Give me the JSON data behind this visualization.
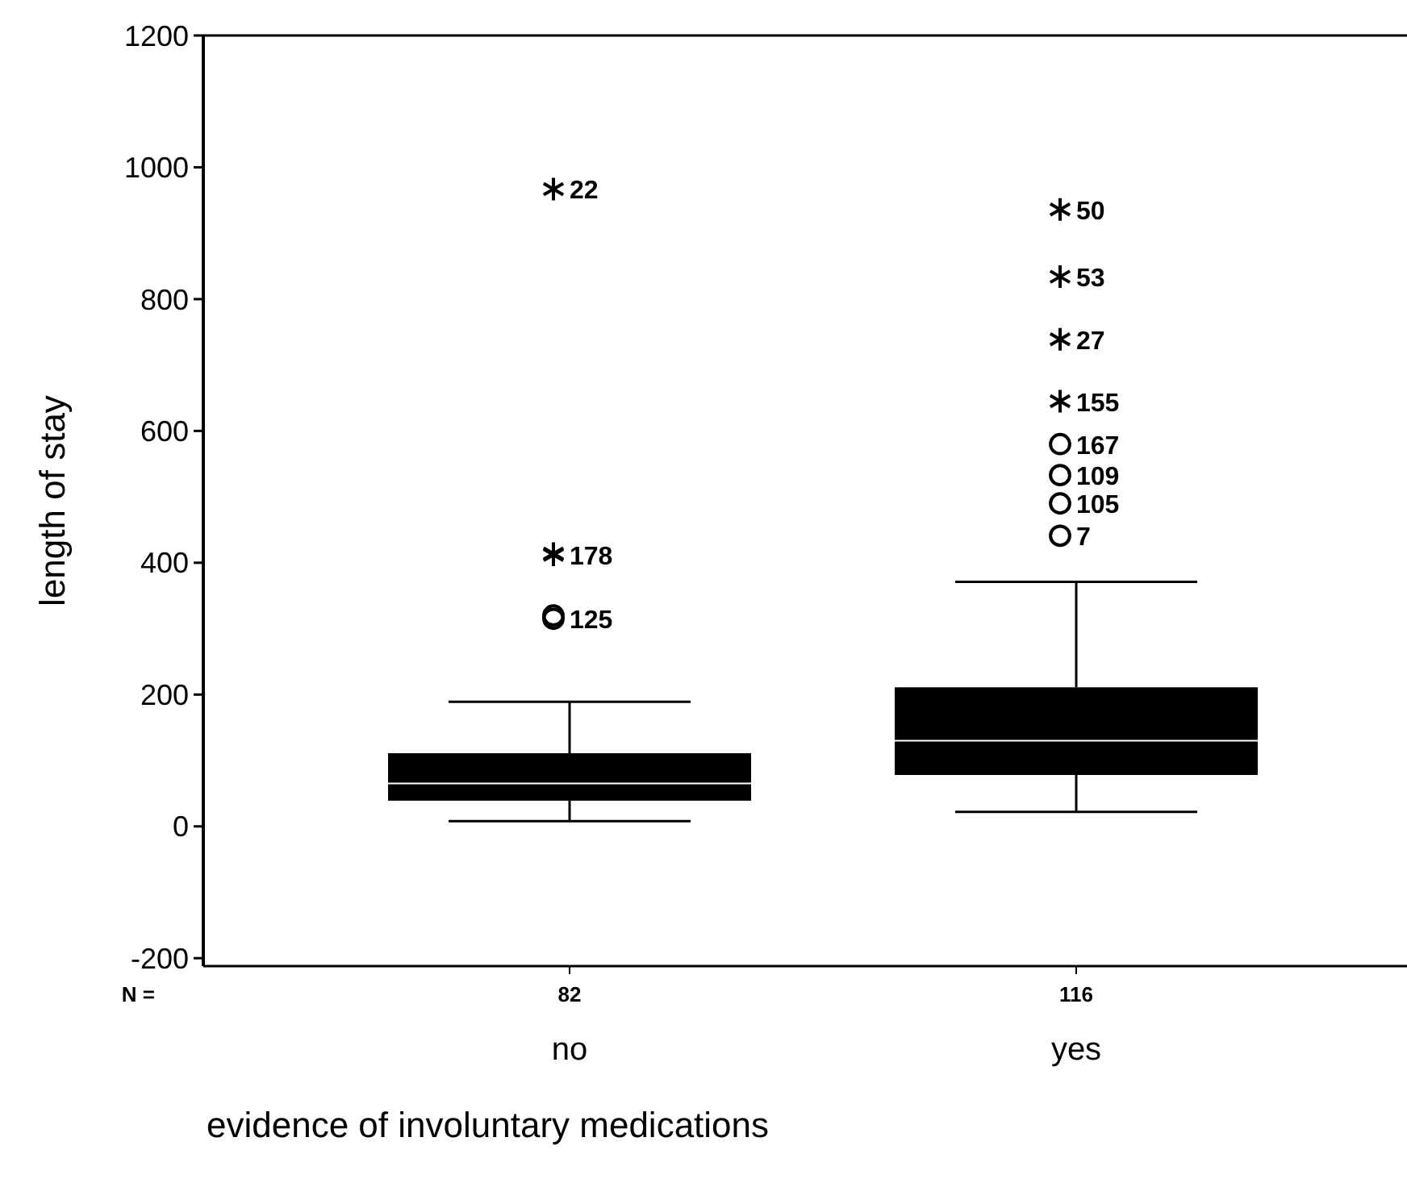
{
  "chart_data": {
    "type": "box",
    "xlabel": "evidence of involuntary medications",
    "ylabel": "length of stay",
    "categories": [
      "no",
      "yes"
    ],
    "color": "#000000",
    "boxes": [
      {
        "low": 8,
        "q1": 39,
        "median": 65,
        "q3": 111,
        "high": 189
      },
      {
        "low": 22,
        "q1": 78,
        "median": 130,
        "q3": 211,
        "high": 371
      }
    ],
    "series": [
      {
        "type": "scatter",
        "marker": "cross",
        "color": "#000000",
        "x": [
          "no",
          "no",
          "no",
          "yes",
          "yes",
          "yes",
          "yes"
        ],
        "values": [
          967,
          412,
          414,
          936,
          834,
          739,
          645
        ]
      },
      {
        "type": "scatter",
        "marker": "circle",
        "color": "#000000",
        "x": [
          "no",
          "no",
          "yes",
          "yes",
          "yes",
          "yes"
        ],
        "values": [
          320,
          315,
          580,
          533,
          490,
          441
        ]
      }
    ],
    "ylim": [
      -212,
      1200
    ],
    "yticks": [
      -200,
      0,
      200,
      400,
      600,
      800,
      1000,
      1200
    ],
    "grid": false,
    "annotations": [
      "N =",
      "82",
      "116",
      {
        "text": "22",
        "x": "no",
        "y": 967
      },
      {
        "text": "178",
        "x": "no",
        "y": 412
      },
      {
        "text": "125",
        "x": "no",
        "y": 315
      },
      {
        "text": "50",
        "x": "yes",
        "y": 936
      },
      {
        "text": "53",
        "x": "yes",
        "y": 834
      },
      {
        "text": "27",
        "x": "yes",
        "y": 739
      },
      {
        "text": "155",
        "x": "yes",
        "y": 645
      },
      {
        "text": "167",
        "x": "yes",
        "y": 580
      },
      {
        "text": "109",
        "x": "yes",
        "y": 533
      },
      {
        "text": "105",
        "x": "yes",
        "y": 490
      },
      {
        "text": "7",
        "x": "yes",
        "y": 441
      }
    ]
  }
}
